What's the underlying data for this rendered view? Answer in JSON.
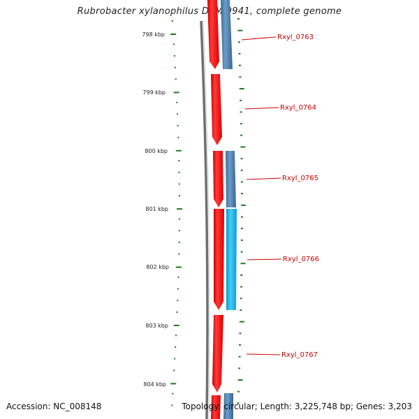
{
  "title": "Rubrobacter xylanophilus DSM 9941, complete genome",
  "position_labels": [
    "798 kbp",
    "799 kbp",
    "800 kbp",
    "801 kbp",
    "802 kbp",
    "803 kbp",
    "804 kbp"
  ],
  "genes": [
    {
      "locus": "Rxyl_0763"
    },
    {
      "locus": "Rxyl_0764"
    },
    {
      "locus": "Rxyl_0765"
    },
    {
      "locus": "Rxyl_0766"
    },
    {
      "locus": "Rxyl_0767"
    }
  ],
  "footer": {
    "accession": "Accession: NC_008148",
    "topology": "Topology: circular; Length: 3,225,748 bp; Genes: 3,203"
  },
  "colors": {
    "gene_red": "#ff0000",
    "gene_blue": "#4a7fb0",
    "gene_cyan": "#1ab4e8",
    "label_red": "#cc0000",
    "tick_green": "#1f7a1f",
    "backbone_gray": "#777777"
  }
}
